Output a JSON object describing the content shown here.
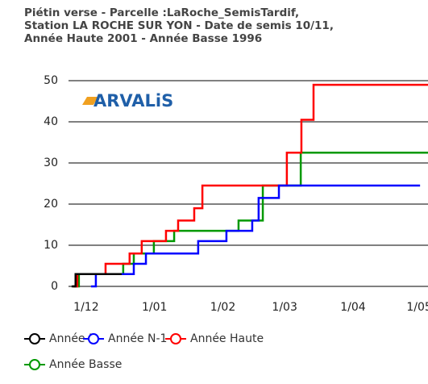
{
  "chart_data": {
    "type": "line",
    "step": "post",
    "title": [
      "Piétin verse - Parcelle :LaRoche_SemisTardif,",
      "Station LA ROCHE SUR YON - Date de semis 10/11,",
      "Année Haute 2001 - Année Basse 1996"
    ],
    "logo": "ARVALiS",
    "xlim": [
      22,
      185
    ],
    "xticks": [
      {
        "value": 30,
        "label": "1/12"
      },
      {
        "value": 61,
        "label": "1/01"
      },
      {
        "value": 92,
        "label": "1/02"
      },
      {
        "value": 120,
        "label": "1/03"
      },
      {
        "value": 151,
        "label": "1/04"
      },
      {
        "value": 181,
        "label": "1/05"
      }
    ],
    "ylim": [
      0,
      50
    ],
    "yticks": [
      0,
      10,
      20,
      30,
      40,
      50
    ],
    "grid": true,
    "series": [
      {
        "name": "Année N",
        "color": "#000000",
        "x": [
          23.4,
          25.2,
          46.1
        ],
        "values": [
          0,
          3,
          3
        ]
      },
      {
        "name": "Année N-1",
        "color": "#0000ff",
        "x": [
          32.2,
          34.4,
          51.6,
          57.1,
          80.8,
          93.6,
          105.3,
          108.2,
          117.4,
          181.4
        ],
        "values": [
          0,
          3,
          5.5,
          8,
          11,
          13.5,
          16,
          21.5,
          24.5,
          24.5
        ]
      },
      {
        "name": "Année Haute",
        "color": "#ff0000",
        "x": [
          24.1,
          26,
          38.8,
          49.7,
          55.2,
          66.2,
          71.7,
          79,
          82.7,
          121,
          127.6,
          133.1,
          185
        ],
        "values": [
          0,
          3,
          5.5,
          8,
          11,
          13.5,
          16,
          19,
          24.5,
          32.5,
          40.5,
          49,
          49
        ]
      },
      {
        "name": "Année Basse",
        "color": "#009900",
        "x": [
          24.1,
          26.7,
          46.8,
          51.6,
          60.7,
          69.9,
          99.1,
          110.1,
          127.3,
          185
        ],
        "values": [
          0,
          3,
          5.5,
          8,
          11,
          13.5,
          16,
          24.5,
          32.5,
          32.5
        ]
      }
    ]
  }
}
